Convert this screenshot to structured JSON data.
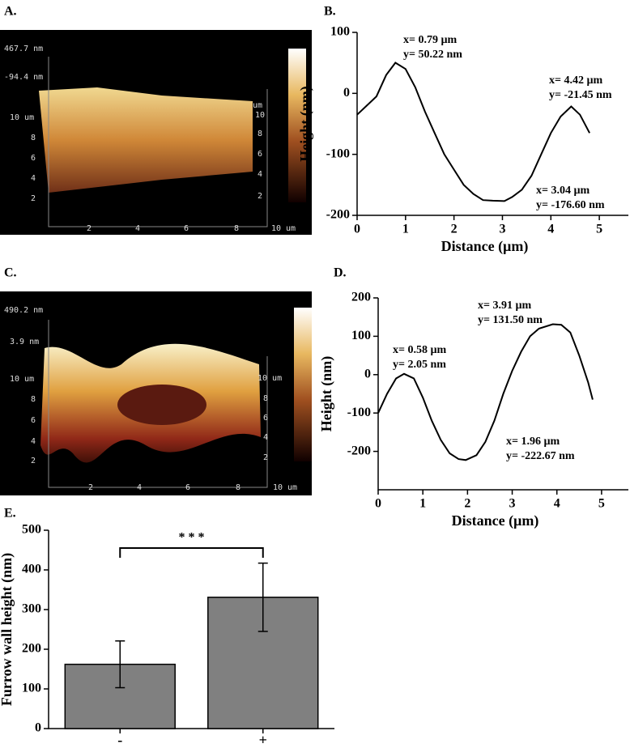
{
  "chart_data": [
    {
      "type": "line",
      "label": "B.",
      "xlabel": "Distance (µm)",
      "ylabel": "Height (nm)",
      "color": "#000000",
      "x": [
        0,
        0.2,
        0.4,
        0.6,
        0.79,
        1.0,
        1.2,
        1.4,
        1.6,
        1.8,
        2.0,
        2.2,
        2.4,
        2.6,
        2.8,
        3.04,
        3.2,
        3.4,
        3.6,
        3.8,
        4.0,
        4.2,
        4.42,
        4.6,
        4.8
      ],
      "values": [
        -35,
        -20,
        -5,
        30,
        50.22,
        40,
        10,
        -30,
        -65,
        -100,
        -125,
        -150,
        -165,
        -175,
        -176,
        -176.6,
        -170,
        -158,
        -135,
        -100,
        -65,
        -38,
        -21.45,
        -35,
        -65
      ],
      "xlim": [
        0,
        5.6
      ],
      "ylim": [
        -200,
        100
      ],
      "xticks": [
        0,
        1,
        2,
        3,
        4,
        5
      ],
      "yticks": [
        -200,
        -100,
        0,
        100
      ],
      "annotations": [
        [
          "x= 0.79 µm",
          "y= 50.22 nm"
        ],
        [
          "x= 4.42 µm",
          "y= -21.45 nm"
        ],
        [
          "x= 3.04 µm",
          "y= -176.60 nm"
        ]
      ]
    },
    {
      "type": "line",
      "label": "D.",
      "xlabel": "Distance (µm)",
      "ylabel": "Height (nm)",
      "color": "#000000",
      "x": [
        0,
        0.2,
        0.4,
        0.58,
        0.8,
        1.0,
        1.2,
        1.4,
        1.6,
        1.8,
        1.96,
        2.2,
        2.4,
        2.6,
        2.8,
        3.0,
        3.2,
        3.4,
        3.6,
        3.91,
        4.1,
        4.3,
        4.5,
        4.7,
        4.8
      ],
      "values": [
        -100,
        -50,
        -10,
        2.05,
        -10,
        -60,
        -120,
        -170,
        -205,
        -220,
        -222.67,
        -210,
        -175,
        -120,
        -50,
        10,
        60,
        100,
        120,
        131.5,
        130,
        110,
        50,
        -20,
        -65
      ],
      "xlim": [
        0,
        5.6
      ],
      "ylim": [
        -300,
        200
      ],
      "xticks": [
        0,
        1,
        2,
        3,
        4,
        5
      ],
      "yticks": [
        -200,
        -100,
        0,
        100,
        200
      ],
      "annotations": [
        [
          "x= 0.58 µm",
          "y= 2.05 nm"
        ],
        [
          "x= 3.91 µm",
          "y= 131.50 nm"
        ],
        [
          "x= 1.96 µm",
          "y= -222.67 nm"
        ]
      ]
    },
    {
      "type": "bar",
      "label": "E.",
      "ylabel": "Furrow wall height (nm)",
      "color": "#808080",
      "categories": [
        "-",
        "+"
      ],
      "values": [
        162,
        331
      ],
      "errors": [
        59,
        86
      ],
      "ylim": [
        0,
        500
      ],
      "yticks": [
        0,
        100,
        200,
        300,
        400,
        500
      ],
      "significance": "* * *"
    }
  ],
  "images": [
    {
      "label": "A.",
      "scale_labels": [
        "467.7 nm",
        "-94.4 nm"
      ],
      "left_ticks": [
        "10 um",
        "8",
        "6",
        "4",
        "2"
      ],
      "right_ticks": [
        "um",
        "10",
        "8",
        "6",
        "4",
        "2"
      ],
      "bottom_ticks": [
        "2",
        "4",
        "6",
        "8",
        "10 um"
      ]
    },
    {
      "label": "C.",
      "scale_labels": [
        "490.2 nm",
        "3.9 nm"
      ],
      "left_ticks": [
        "10 um",
        "8",
        "6",
        "4",
        "2"
      ],
      "right_ticks": [
        "10 um",
        "8",
        "6",
        "4",
        "2"
      ],
      "bottom_ticks": [
        "2",
        "4",
        "6",
        "8",
        "10 um"
      ]
    }
  ]
}
